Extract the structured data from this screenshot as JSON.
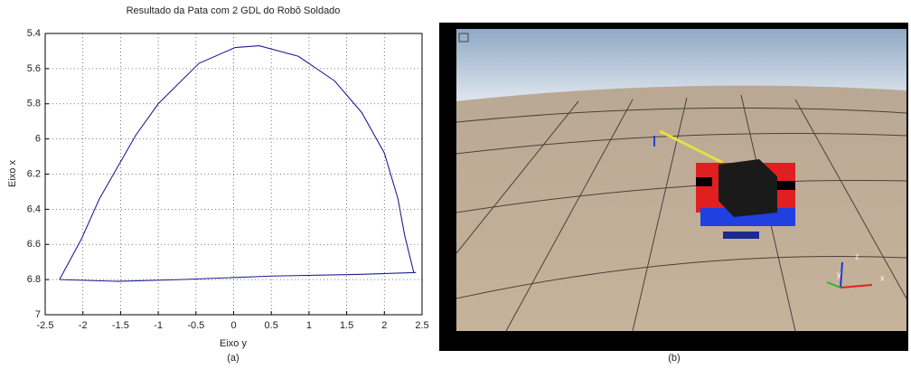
{
  "chart_data": {
    "type": "line",
    "title": "Resultado da Pata com 2 GDL do Robô Soldado",
    "x_label": "Eixo y",
    "y_label": "Eixo x",
    "x": [
      -2.31,
      -2.02,
      -1.78,
      -1.54,
      -1.3,
      -1.0,
      -0.46,
      0.02,
      0.34,
      0.86,
      1.34,
      1.7,
      2.0,
      2.18,
      2.27,
      2.39,
      2.42,
      1.7,
      0.5,
      -0.7,
      -1.54,
      -2.31
    ],
    "values": [
      6.8,
      6.57,
      6.34,
      6.16,
      5.98,
      5.8,
      5.57,
      5.48,
      5.47,
      5.53,
      5.67,
      5.85,
      6.08,
      6.34,
      6.55,
      6.76,
      6.76,
      6.77,
      6.78,
      6.8,
      6.81,
      6.8
    ],
    "color": "#1f1f8f",
    "xlim": [
      -2.5,
      2.5
    ],
    "xticks": [
      -2.5,
      -2,
      -1.5,
      -1,
      -0.5,
      0,
      0.5,
      1,
      1.5,
      2,
      2.5
    ],
    "ylim": [
      5.4,
      7
    ],
    "yticks": [
      5.4,
      5.6,
      5.8,
      6,
      6.2,
      6.4,
      6.6,
      6.8,
      7
    ],
    "y_inverted": true,
    "grid": true
  },
  "captions": [
    "(a)",
    "(b)"
  ],
  "simulation": {
    "axis_labels": [
      "z",
      "y",
      "x"
    ]
  }
}
